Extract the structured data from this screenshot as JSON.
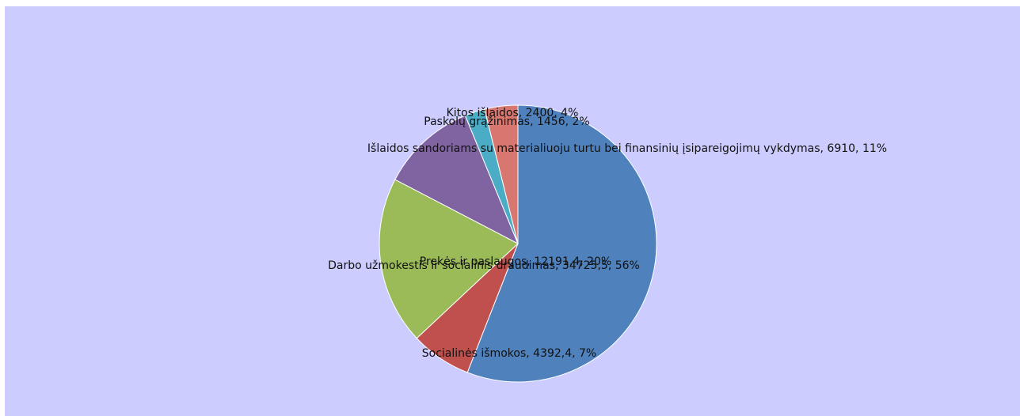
{
  "chart_data": {
    "type": "pie",
    "title": "",
    "slices": [
      {
        "label": "Darbo užmokestis ir socialinis draudimas",
        "value_text": "34725,5",
        "value": 34725.5,
        "percent_text": "56%",
        "color": "#4f81bd"
      },
      {
        "label": "Socialinės išmokos",
        "value_text": "4392,4",
        "value": 4392.4,
        "percent_text": "7%",
        "color": "#c0504d"
      },
      {
        "label": "Prekės ir paslaugos",
        "value_text": "12191,4",
        "value": 12191.4,
        "percent_text": "20%",
        "color": "#9bbb59"
      },
      {
        "label": "Išlaidos sandoriams su materialiuoju turtu bei finansinių įsipareigojimų vykdymas",
        "value_text": "6910",
        "value": 6910,
        "percent_text": "11%",
        "color": "#8064a2"
      },
      {
        "label": "Paskolų grąžinimas",
        "value_text": "1456",
        "value": 1456,
        "percent_text": "2%",
        "color": "#4bacc6"
      },
      {
        "label": "Kitos išlaidos",
        "value_text": "2400",
        "value": 2400,
        "percent_text": "4%",
        "color": "#d8776f"
      }
    ],
    "legend": "none",
    "grid": false
  }
}
